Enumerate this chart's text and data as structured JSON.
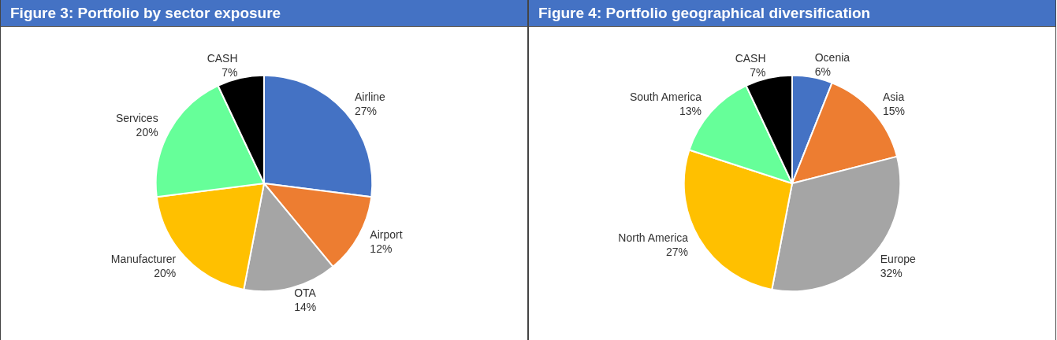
{
  "chart_data": [
    {
      "type": "pie",
      "title": "Figure 3: Portfolio by sector exposure",
      "categories": [
        "Airline",
        "Airport",
        "OTA",
        "Manufacturer",
        "Services",
        "CASH"
      ],
      "values": [
        27,
        12,
        14,
        20,
        20,
        7
      ],
      "value_labels": [
        "27%",
        "12%",
        "14%",
        "20%",
        "20%",
        "7%"
      ],
      "colors": [
        "#4472c4",
        "#ed7d31",
        "#a5a5a5",
        "#ffc000",
        "#66ff99",
        "#000000"
      ],
      "legend": false
    },
    {
      "type": "pie",
      "title": "Figure 4: Portfolio geographical diversification",
      "categories": [
        "Ocenia",
        "Asia",
        "Europe",
        "North America",
        "South America",
        "CASH"
      ],
      "values": [
        6,
        15,
        32,
        27,
        13,
        7
      ],
      "value_labels": [
        "6%",
        "15%",
        "32%",
        "27%",
        "13%",
        "7%"
      ],
      "colors": [
        "#4472c4",
        "#ed7d31",
        "#a5a5a5",
        "#ffc000",
        "#66ff99",
        "#000000"
      ],
      "legend": false
    }
  ]
}
